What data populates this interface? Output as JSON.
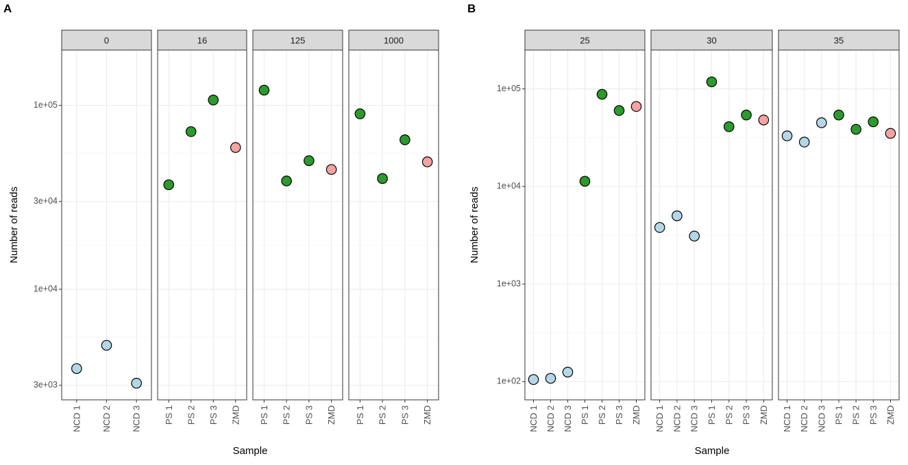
{
  "chart_data": [
    {
      "panel": "A",
      "type": "scatter",
      "scale": "log10",
      "xlabel": "Sample",
      "ylabel": "Number of reads",
      "ylim": [
        2500,
        200000
      ],
      "yticks": [
        {
          "value": 3000,
          "label": "3e+03"
        },
        {
          "value": 10000,
          "label": "1e+04"
        },
        {
          "value": 30000,
          "label": "3e+04"
        },
        {
          "value": 100000,
          "label": "1e+05"
        }
      ],
      "yminor": [
        5477,
        17320,
        54772
      ],
      "facets": [
        {
          "label": "0",
          "samples": [
            "NCD 1",
            "NCD 2",
            "NCD 3"
          ],
          "values": [
            3700,
            4950,
            3080
          ]
        },
        {
          "label": "16",
          "samples": [
            "PS 1",
            "PS 2",
            "PS 3",
            "ZMD"
          ],
          "values": [
            37000,
            72000,
            107000,
            59000
          ]
        },
        {
          "label": "125",
          "samples": [
            "PS 1",
            "PS 2",
            "PS 3",
            "ZMD"
          ],
          "values": [
            121000,
            38800,
            50000,
            44800
          ]
        },
        {
          "label": "1000",
          "samples": [
            "PS 1",
            "PS 2",
            "PS 3",
            "ZMD"
          ],
          "values": [
            90000,
            40000,
            65000,
            49300
          ]
        }
      ]
    },
    {
      "panel": "B",
      "type": "scatter",
      "scale": "log10",
      "xlabel": "Sample",
      "ylabel": "Number of reads",
      "ylim": [
        65,
        250000
      ],
      "yticks": [
        {
          "value": 100,
          "label": "1e+02"
        },
        {
          "value": 1000,
          "label": "1e+03"
        },
        {
          "value": 10000,
          "label": "1e+04"
        },
        {
          "value": 100000,
          "label": "1e+05"
        }
      ],
      "yminor": [
        316,
        3162,
        31623
      ],
      "facets": [
        {
          "label": "25",
          "samples": [
            "NCD 1",
            "NCD 2",
            "NCD 3",
            "PS 1",
            "PS 2",
            "PS 3",
            "ZMD"
          ],
          "values": [
            105,
            108,
            125,
            11300,
            88000,
            60000,
            66000
          ]
        },
        {
          "label": "30",
          "samples": [
            "NCD 1",
            "NCD 2",
            "NCD 3",
            "PS 1",
            "PS 2",
            "PS 3",
            "ZMD"
          ],
          "values": [
            3800,
            5000,
            3100,
            118000,
            41000,
            54000,
            48000
          ]
        },
        {
          "label": "35",
          "samples": [
            "NCD 1",
            "NCD 2",
            "NCD 3",
            "PS 1",
            "PS 2",
            "PS 3",
            "ZMD"
          ],
          "values": [
            33000,
            28500,
            45000,
            54000,
            38500,
            46000,
            35000
          ]
        }
      ]
    }
  ],
  "colors": {
    "NCD": "#b5d6e6",
    "PS": "#2c9a2c",
    "ZMD": "#f4a3a3"
  }
}
